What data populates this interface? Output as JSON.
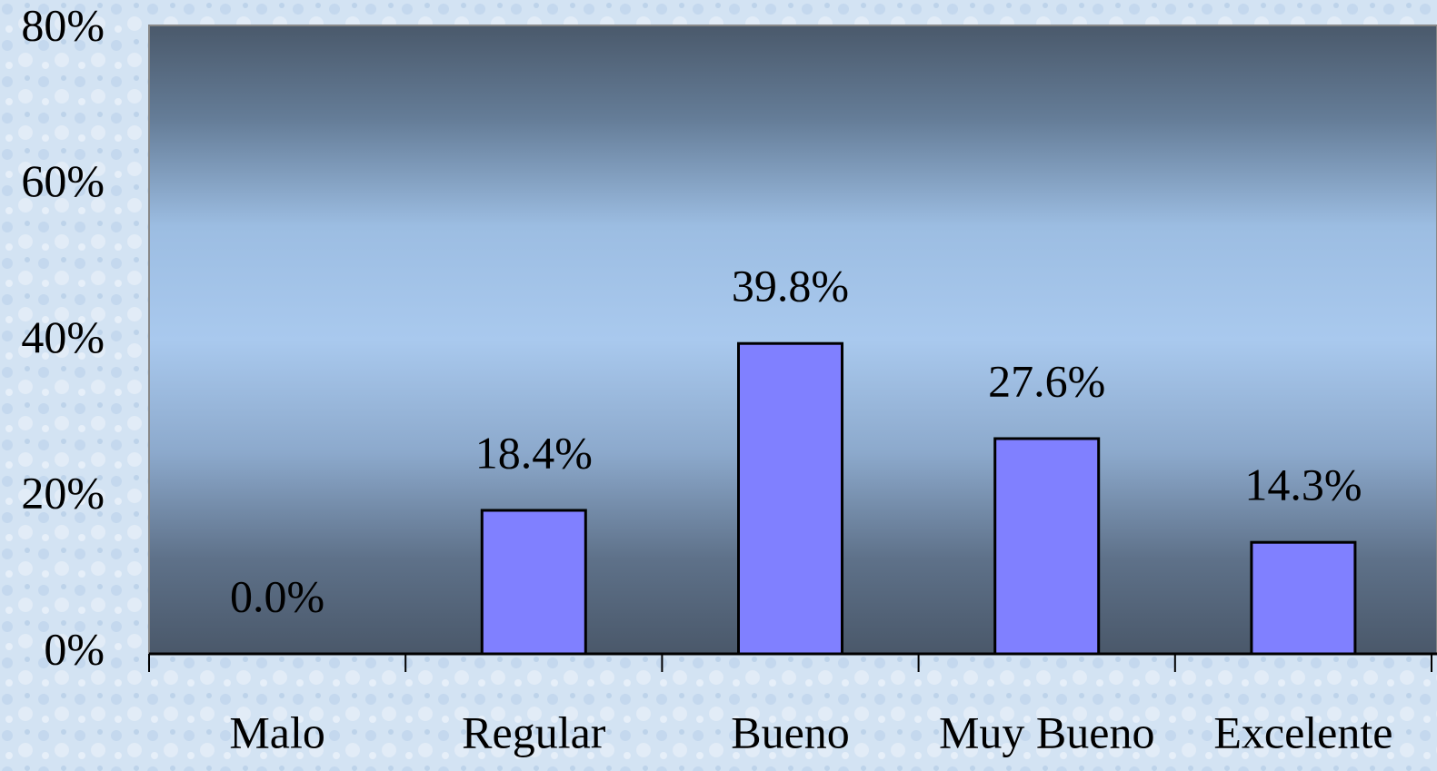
{
  "chart_data": {
    "type": "bar",
    "categories": [
      "Malo",
      "Regular",
      "Bueno",
      "Muy Bueno",
      "Excelente"
    ],
    "values": [
      0,
      18.4,
      39.8,
      27.6,
      14.3
    ],
    "value_labels": [
      "0.0%",
      "18.4%",
      "39.8%",
      "27.6%",
      "14.3%"
    ],
    "color": "#8080ff",
    "ylim": [
      0,
      80
    ],
    "yticks": [
      {
        "value": 0,
        "label": "0%"
      },
      {
        "value": 20,
        "label": "20%"
      },
      {
        "value": 40,
        "label": "40%"
      },
      {
        "value": 60,
        "label": "60%"
      },
      {
        "value": 80,
        "label": "80%"
      }
    ]
  }
}
